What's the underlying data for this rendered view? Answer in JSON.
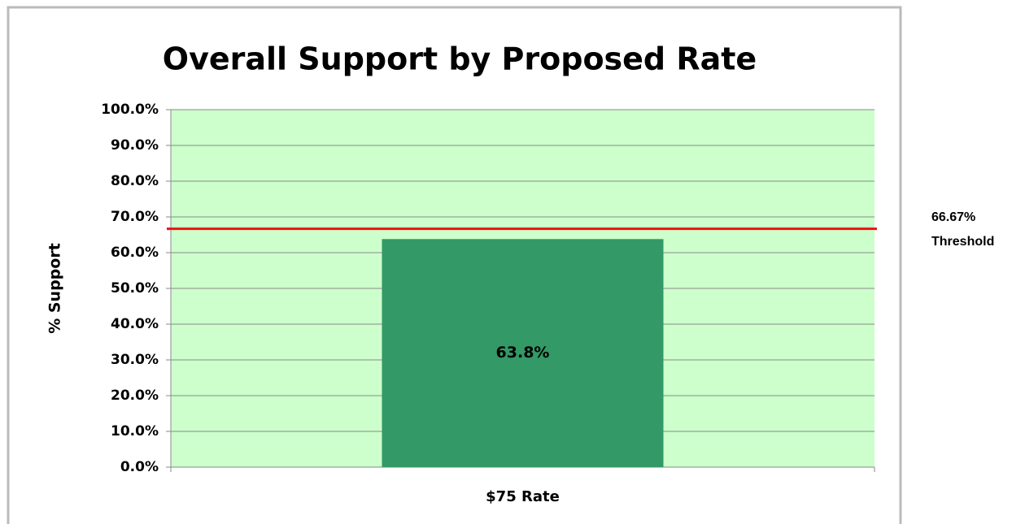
{
  "chart_data": {
    "type": "bar",
    "title": "Overall Support by Proposed Rate",
    "y_label": "% Support",
    "categories": [
      "$75 Rate"
    ],
    "values": [
      63.8
    ],
    "value_labels": [
      "63.8%"
    ],
    "color": "#339966",
    "plot_background": "#ccffcc",
    "grid": true,
    "ylim": [
      0,
      100
    ],
    "yticks": [
      {
        "value": 0,
        "label": "0.0%"
      },
      {
        "value": 10,
        "label": "10.0%"
      },
      {
        "value": 20,
        "label": "20.0%"
      },
      {
        "value": 30,
        "label": "30.0%"
      },
      {
        "value": 40,
        "label": "40.0%"
      },
      {
        "value": 50,
        "label": "50.0%"
      },
      {
        "value": 60,
        "label": "60.0%"
      },
      {
        "value": 70,
        "label": "70.0%"
      },
      {
        "value": 80,
        "label": "80.0%"
      },
      {
        "value": 90,
        "label": "90.0%"
      },
      {
        "value": 100,
        "label": "100.0%"
      }
    ],
    "threshold": {
      "value": 66.67,
      "label": "66.67%",
      "text": "Threshold",
      "color": "#ee1111"
    }
  }
}
